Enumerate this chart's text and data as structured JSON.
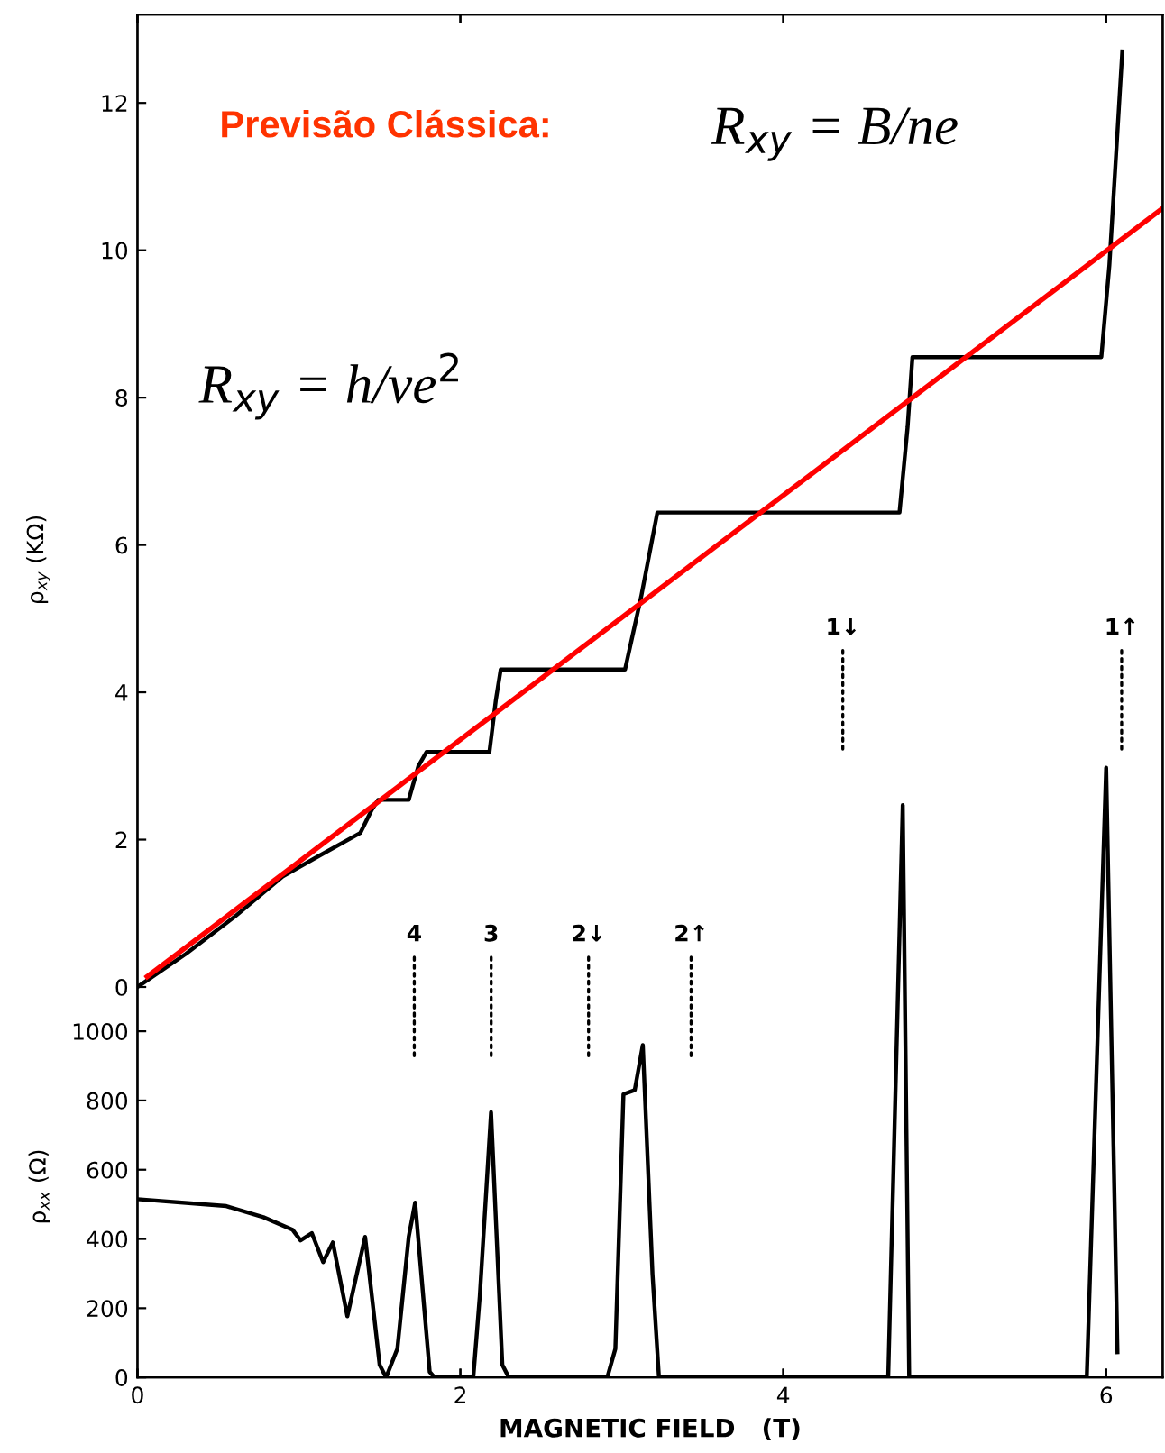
{
  "chart_data": [
    {
      "type": "line",
      "ylabel": "ρ$_{xy}$ (KΩ)",
      "xlim": [
        0,
        6.35
      ],
      "xticks": [
        0,
        2,
        4,
        6
      ],
      "ylim": [
        -5.3,
        13.2
      ],
      "yticks": [
        0,
        2,
        4,
        6,
        8,
        10,
        12
      ],
      "tick_labels": "y",
      "series": [
        {
          "color": "#000000",
          "x": [
            0,
            0.3,
            0.6,
            0.9,
            1.1,
            1.38,
            1.45,
            1.49,
            1.68,
            1.74,
            1.79,
            2.18,
            2.22,
            2.25,
            3.02,
            3.12,
            3.22,
            4.72,
            4.77,
            4.8,
            5.97,
            6.02,
            6.1
          ],
          "values": [
            0,
            0.45,
            0.95,
            1.5,
            1.75,
            2.09,
            2.4,
            2.54,
            2.54,
            3.0,
            3.19,
            3.19,
            3.9,
            4.31,
            4.31,
            5.3,
            6.44,
            6.44,
            7.6,
            8.55,
            8.55,
            9.8,
            12.7
          ]
        },
        {
          "color": "#ff0000",
          "x": [
            0.06,
            6.35
          ],
          "values": [
            0.14,
            10.57
          ]
        }
      ],
      "annotations": [
        "Previsão Clássica:",
        "R$_{xy}$ = B/ne",
        "R$_{xy}$ = h/νe$^{2}$",
        "4",
        "3",
        "2↓",
        "2↑",
        "1↓",
        "1↑"
      ],
      "legend": false,
      "grid": false
    },
    {
      "type": "line",
      "xlabel": "MAGNETIC FIELD   (T)",
      "ylabel": "ρ$_{xx}$ (Ω)",
      "xlim": [
        0,
        6.35
      ],
      "xticks": [
        0,
        2,
        4,
        6
      ],
      "ylim": [
        0,
        3937
      ],
      "yticks": [
        0,
        200,
        400,
        600,
        800,
        1000
      ],
      "series": [
        {
          "color": "#000000",
          "x": [
            0,
            0.55,
            0.78,
            0.96,
            1.01,
            1.08,
            1.15,
            1.21,
            1.3,
            1.41,
            1.5,
            1.54,
            1.61,
            1.68,
            1.72,
            1.81,
            1.84,
            2.08,
            2.12,
            2.19,
            2.26,
            2.3,
            2.91,
            2.96,
            3.01,
            3.08,
            3.13,
            3.19,
            3.23,
            4.65,
            4.74,
            4.78,
            5.88,
            6.0,
            6.07
          ],
          "values": [
            515,
            495,
            463,
            427,
            396,
            417,
            333,
            390,
            177,
            406,
            36,
            0,
            83,
            406,
            505,
            16,
            0,
            0,
            234,
            766,
            36,
            0,
            0,
            83,
            818,
            830,
            960,
            298,
            0,
            0,
            1653,
            0,
            0,
            1761,
            73
          ]
        }
      ],
      "legend": false,
      "grid": false
    }
  ]
}
